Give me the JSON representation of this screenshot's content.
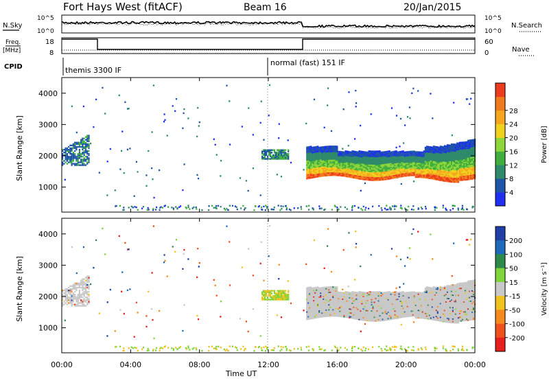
{
  "header": {
    "station": "Fort Hays West (fitACF)",
    "beam": "Beam 16",
    "date": "20/Jan/2015"
  },
  "strip": {
    "nsky_label": "N.Sky",
    "nsky_ticks": [
      "10^5",
      "10^0"
    ],
    "nsearch_label": "N.Search",
    "nsearch_ticks": [
      "10^5",
      "10^0"
    ],
    "freq_label_1": "Freq.",
    "freq_label_2": "[MHz]",
    "freq_ticks": [
      "18",
      "8"
    ],
    "nave_label": "Nave",
    "nave_ticks": [
      "60",
      "0"
    ],
    "cpid_label": "CPID",
    "cpid_segments": [
      "themis 3300 IF",
      "normal (fast) 151 IF"
    ]
  },
  "axes": {
    "xlabel": "Time UT",
    "x_ticks": [
      "00:00",
      "04:00",
      "08:00",
      "12:00",
      "16:00",
      "20:00",
      "00:00"
    ],
    "ylabel": "Slant Range [km]",
    "y_ticks": [
      "1000",
      "2000",
      "3000",
      "4000"
    ]
  },
  "colorbars": {
    "power": {
      "label": "Power [dB]",
      "ticks": [
        "4",
        "8",
        "12",
        "16",
        "20",
        "24",
        "28"
      ],
      "colors": [
        "#1f2ef0",
        "#1f55a8",
        "#2e8a6a",
        "#3fae3f",
        "#8ed63a",
        "#f0d21e",
        "#f5a51e",
        "#f07a1e",
        "#ee3a1e"
      ]
    },
    "velocity": {
      "label": "Velocity [m s⁻¹]",
      "ticks": [
        "200",
        "100",
        "50",
        "15",
        "-15",
        "-50",
        "-100",
        "-200"
      ],
      "colors": [
        "#1f3ea8",
        "#1f6ab8",
        "#2e8a4a",
        "#7ed63a",
        "#c8c8c8",
        "#f0c21e",
        "#f58a1e",
        "#f0501e",
        "#e61e1e"
      ]
    }
  },
  "chart_data": {
    "type": "heatmap",
    "x_range_hours": [
      0,
      24
    ],
    "y_range_km": [
      200,
      4500
    ],
    "ground_scatter_color": "#c8c8c8",
    "power_features": [
      {
        "region": "early evening echo",
        "t": [
          0.0,
          1.6
        ],
        "range_km": [
          1700,
          2600
        ],
        "power_db": 8
      },
      {
        "region": "midday patch",
        "t": [
          11.6,
          13.2
        ],
        "range_km": [
          1900,
          2200
        ],
        "power_db": 8
      },
      {
        "region": "main band",
        "t": [
          14.2,
          24.0
        ],
        "range_km": [
          1300,
          2500
        ],
        "power_db": 18
      },
      {
        "region": "main band core",
        "t": [
          15.0,
          23.0
        ],
        "range_km": [
          1300,
          1700
        ],
        "power_db": 26
      }
    ],
    "cpid_switch_hour": 12.0
  }
}
